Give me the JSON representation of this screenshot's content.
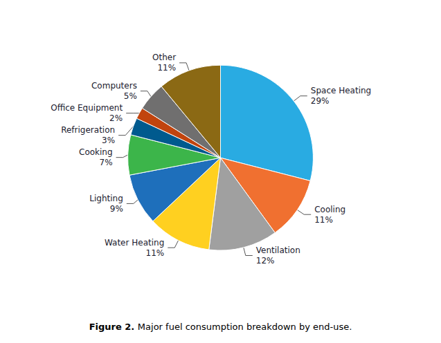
{
  "chart_data": {
    "type": "pie",
    "title": "Figure 2.",
    "subtitle": "Major fuel consumption breakdown by end-use.",
    "categories": [
      "Space Heating",
      "Cooling",
      "Ventilation",
      "Water Heating",
      "Lighting",
      "Cooking",
      "Refrigeration",
      "Office Equipment",
      "Computers",
      "Other"
    ],
    "values": [
      29,
      11,
      12,
      11,
      9,
      7,
      3,
      2,
      5,
      11
    ],
    "value_labels": [
      "29%",
      "11%",
      "12%",
      "11%",
      "9%",
      "7%",
      "3%",
      "2%",
      "5%",
      "11%"
    ],
    "colors": [
      "#29ABE2",
      "#F07030",
      "#A0A0A0",
      "#FFD020",
      "#1E6FBB",
      "#3CB54A",
      "#005A8E",
      "#C1440E",
      "#706F6F",
      "#8B6914"
    ],
    "data_labels": true,
    "legend": false
  }
}
